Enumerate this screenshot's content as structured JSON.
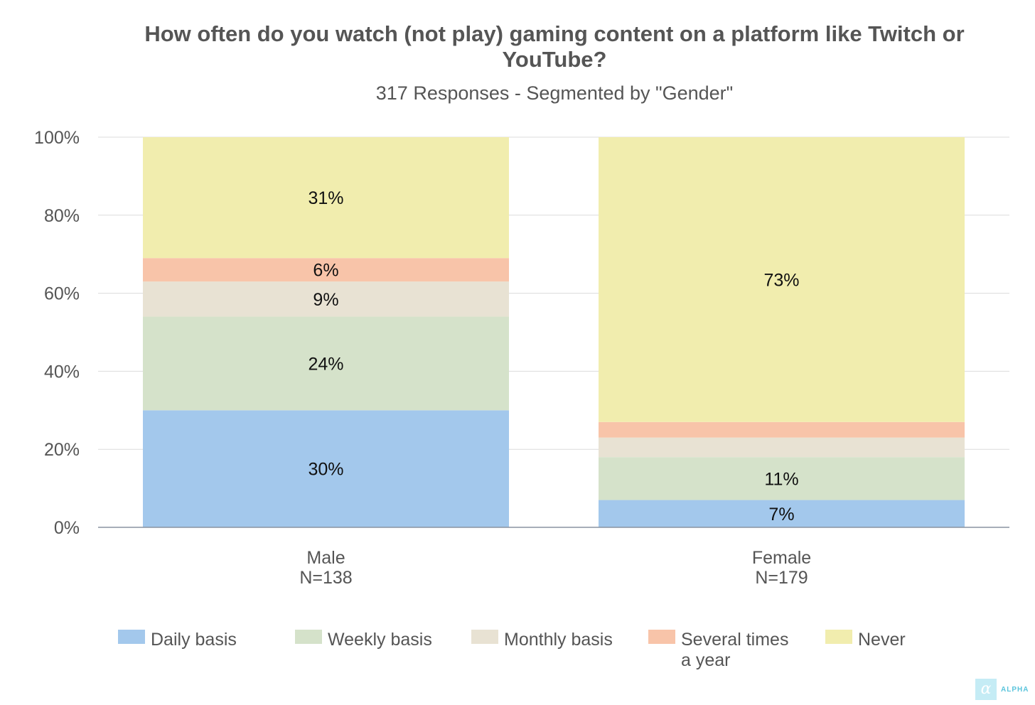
{
  "chart_data": {
    "type": "bar",
    "stacked": true,
    "title": "How often do you watch (not play) gaming content on a platform like Twitch or YouTube?",
    "subtitle": "317 Responses - Segmented by \"Gender\"",
    "categories": [
      {
        "name": "Male",
        "n": "N=138"
      },
      {
        "name": "Female",
        "n": "N=179"
      }
    ],
    "series": [
      {
        "name": "Daily basis",
        "color": "#a3c8ec",
        "values": [
          30,
          7
        ],
        "labels": [
          "30%",
          "7%"
        ]
      },
      {
        "name": "Weekly basis",
        "color": "#d5e2ca",
        "values": [
          24,
          11
        ],
        "labels": [
          "24%",
          "11%"
        ]
      },
      {
        "name": "Monthly basis",
        "color": "#e8e2d3",
        "values": [
          9,
          5
        ],
        "labels": [
          "9%",
          ""
        ]
      },
      {
        "name": "Several times\na year",
        "color": "#f8c4a9",
        "values": [
          6,
          4
        ],
        "labels": [
          "6%",
          ""
        ]
      },
      {
        "name": "Never",
        "color": "#f1edae",
        "values": [
          31,
          73
        ],
        "labels": [
          "31%",
          "73%"
        ]
      }
    ],
    "yticks": [
      "0%",
      "20%",
      "40%",
      "60%",
      "80%",
      "100%"
    ],
    "ylim": [
      0,
      100
    ],
    "grid": true,
    "legend_position": "bottom"
  },
  "brand": {
    "text": "ALPHA",
    "mark": "α"
  }
}
